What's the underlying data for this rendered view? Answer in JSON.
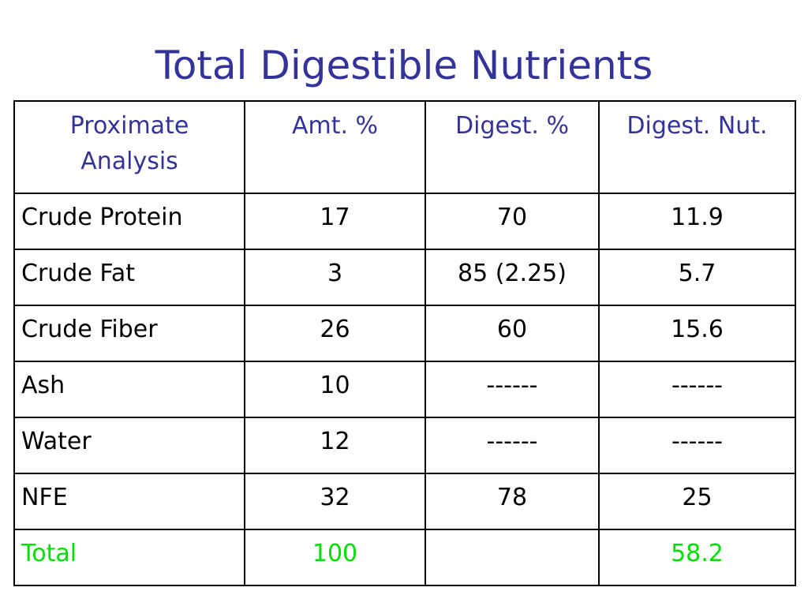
{
  "slide": {
    "title": "Total Digestible Nutrients"
  },
  "colors": {
    "title": "#333399",
    "header_text": "#333399",
    "body_text": "#000000",
    "total_text": "#00e000",
    "border": "#000000"
  },
  "table": {
    "headers": [
      "Proximate Analysis",
      "Amt. %",
      "Digest. %",
      "Digest. Nut."
    ],
    "rows": [
      {
        "name": "Crude Protein",
        "amt": "17",
        "digest_pct": "70",
        "digest_nut": "11.9"
      },
      {
        "name": "Crude Fat",
        "amt": "3",
        "digest_pct": "85 (2.25)",
        "digest_nut": "5.7"
      },
      {
        "name": "Crude Fiber",
        "amt": "26",
        "digest_pct": "60",
        "digest_nut": "15.6"
      },
      {
        "name": "Ash",
        "amt": "10",
        "digest_pct": "------",
        "digest_nut": "------"
      },
      {
        "name": "Water",
        "amt": "12",
        "digest_pct": "------",
        "digest_nut": "------"
      },
      {
        "name": "NFE",
        "amt": "32",
        "digest_pct": "78",
        "digest_nut": "25"
      }
    ],
    "total": {
      "name": "Total",
      "amt": "100",
      "digest_pct": "",
      "digest_nut": "58.2"
    }
  }
}
